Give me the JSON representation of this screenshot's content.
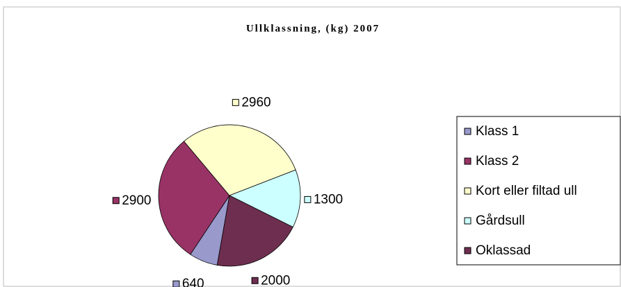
{
  "chart_data": {
    "type": "pie",
    "title": "Ullklassning, (kg) 2007",
    "categories": [
      "Klass 1",
      "Klass 2",
      "Kort eller filtad ull",
      "Gårdsull",
      "Oklassad"
    ],
    "values": [
      640,
      2900,
      2960,
      1300,
      2000
    ],
    "colors": [
      "#9999cc",
      "#993366",
      "#ffffcc",
      "#ccffff",
      "#6e2e50"
    ],
    "legend": "right"
  }
}
